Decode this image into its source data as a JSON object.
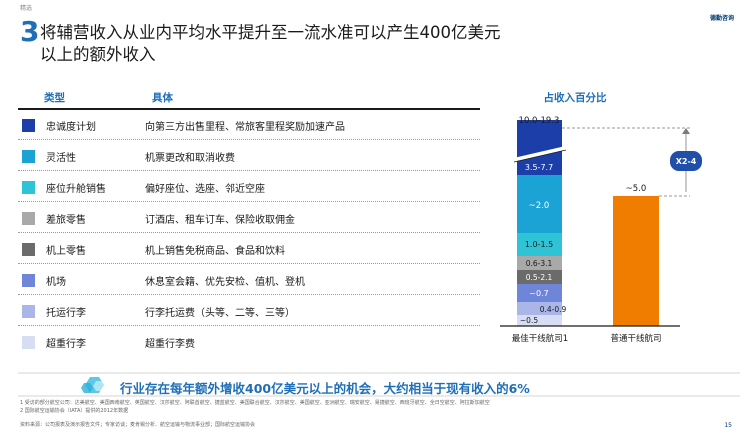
{
  "header": {
    "tag": "精选",
    "brand": "德勤咨询",
    "title_number": "3",
    "title_line1": "将辅营收入从业内平均水平提升至一流水准可以产生400亿美元",
    "title_line2": "以上的额外收入"
  },
  "table": {
    "col_type": "类型",
    "col_detail": "具体",
    "rows": [
      {
        "type": "忠诚度计划",
        "detail": "向第三方出售里程、常旅客里程奖励加速产品",
        "color": "#1b3ea8"
      },
      {
        "type": "灵活性",
        "detail": "机票更改和取消收费",
        "color": "#1aa3d4"
      },
      {
        "type": "座位升舱销售",
        "detail": "偏好座位、选座、邻近空座",
        "color": "#2ec4d6"
      },
      {
        "type": "差旅零售",
        "detail": "订酒店、租车订车、保险收取佣金",
        "color": "#a9a9a9"
      },
      {
        "type": "机上零售",
        "detail": "机上销售免税商品、食品和饮料",
        "color": "#6b6b6b"
      },
      {
        "type": "机场",
        "detail": "休息室会籍、优先安检、值机、登机",
        "color": "#6f86d8"
      },
      {
        "type": "托运行李",
        "detail": "行李托运费（头等、二等、三等）",
        "color": "#aab6e8"
      },
      {
        "type": "超重行李",
        "detail": "超重行李费",
        "color": "#d7ddf3"
      }
    ]
  },
  "chart_data": {
    "type": "bar",
    "title": "占收入百分比",
    "categories": [
      "最佳干线航司1",
      "普通干线航司"
    ],
    "stack_labels": [
      "10.0-19.3",
      "3.5-7.7",
      "~2.0",
      "1.0-1.5",
      "0.6-3.1",
      "0.5-2.1",
      "~0.7",
      "0.4-0.9",
      "~0.5"
    ],
    "comparison_label": "~5.0",
    "multiplier_label": "X2-4",
    "colors": {
      "loyalty": "#1b3ea8",
      "flex": "#1aa3d4",
      "seat": "#2ec4d6",
      "travel": "#a9a9a9",
      "onboard": "#6b6b6b",
      "airport": "#6f86d8",
      "bag": "#aab6e8",
      "excess": "#d7ddf3",
      "avg_bar": "#f07c00"
    }
  },
  "footer": {
    "callout": "行业存在每年额外增收400亿美元以上的机会，大约相当于现有收入的6%",
    "note1": "1 受访的部分航空公司：达美航空、美国西南航空、英国航空、汉莎航空、阿联酋航空、捷蓝航空、美国联合航空、汉莎航空、美国航空、亚洲航空、瑞安航空、易捷航空、西班牙航空、全日空航空、阿拉斯加航空",
    "note2": "2 国际航空运输协会（IATA）提供的2012年数据",
    "source": "资料来源：公司报表及演示报告文件；专家访谈；麦肯锡分析、航空运输与物流事业部；国际航空运输协会",
    "page": "15"
  }
}
